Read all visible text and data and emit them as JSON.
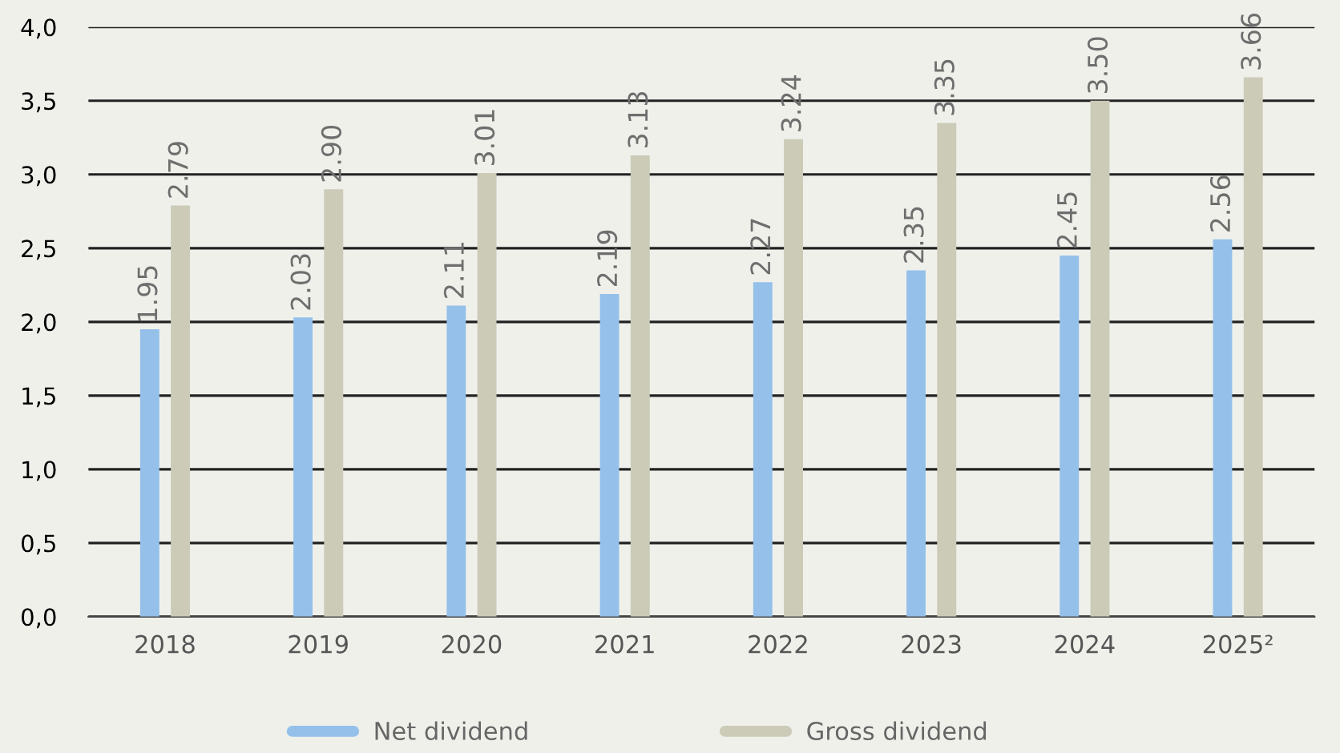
{
  "chart_data": {
    "type": "bar",
    "categories": [
      "2018",
      "2019",
      "2020",
      "2021",
      "2022",
      "2023",
      "2024",
      "2025²"
    ],
    "series": [
      {
        "name": "Net dividend",
        "color": "#94c0ea",
        "values": [
          1.95,
          2.03,
          2.11,
          2.19,
          2.27,
          2.35,
          2.45,
          2.56
        ],
        "value_labels": [
          "1.95",
          "2.03",
          "2.11",
          "2.19",
          "2.27",
          "2.35",
          "2.45",
          "2.56"
        ]
      },
      {
        "name": "Gross dividend",
        "color": "#cbcbb8",
        "values": [
          2.79,
          2.9,
          3.01,
          3.13,
          3.24,
          3.35,
          3.5,
          3.66
        ],
        "value_labels": [
          "2.79",
          "2.90",
          "3.01",
          "3.13",
          "3.24",
          "3.35",
          "3.50",
          "3.66"
        ]
      }
    ],
    "ylim": [
      0,
      4
    ],
    "yticks": [
      {
        "value": 0,
        "label": "0,0"
      },
      {
        "value": 0.5,
        "label": "0,5"
      },
      {
        "value": 1,
        "label": "1,0"
      },
      {
        "value": 1.5,
        "label": "1,5"
      },
      {
        "value": 2,
        "label": "2,0"
      },
      {
        "value": 2.5,
        "label": "2,5"
      },
      {
        "value": 3,
        "label": "3,0"
      },
      {
        "value": 3.5,
        "label": "3,5"
      },
      {
        "value": 4,
        "label": "4,0"
      }
    ],
    "grid": "y",
    "legend": "bottom"
  }
}
